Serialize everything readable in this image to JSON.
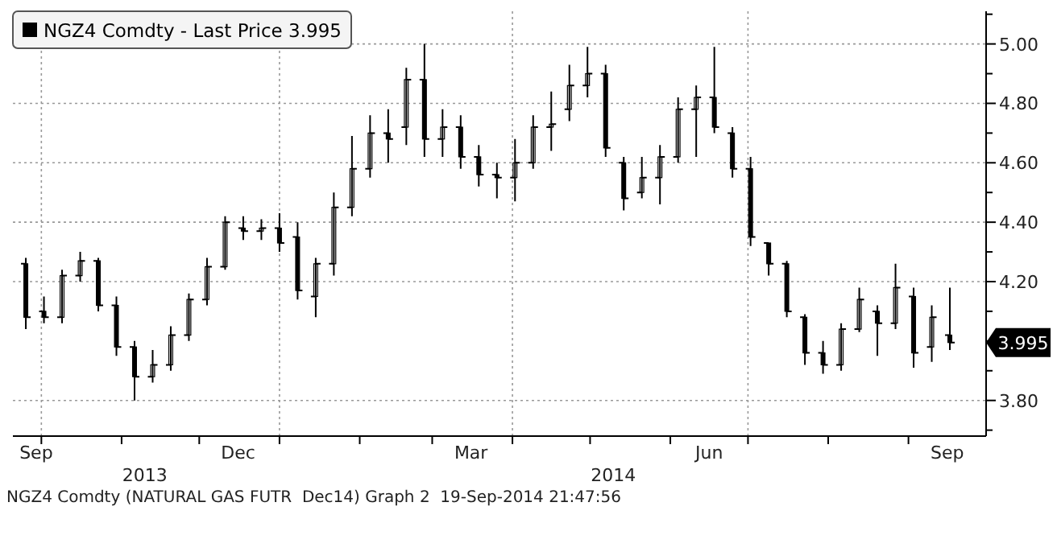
{
  "chart_data": {
    "type": "candlestick",
    "x": [
      "2013-09-25",
      "2013-10-02",
      "2013-10-09",
      "2013-10-16",
      "2013-10-23",
      "2013-10-30",
      "2013-11-06",
      "2013-11-13",
      "2013-11-20",
      "2013-11-27",
      "2013-12-04",
      "2013-12-11",
      "2013-12-18",
      "2013-12-25",
      "2014-01-01",
      "2014-01-08",
      "2014-01-15",
      "2014-01-22",
      "2014-01-29",
      "2014-02-05",
      "2014-02-12",
      "2014-02-19",
      "2014-02-26",
      "2014-03-05",
      "2014-03-12",
      "2014-03-19",
      "2014-03-26",
      "2014-04-02",
      "2014-04-09",
      "2014-04-16",
      "2014-04-23",
      "2014-04-30",
      "2014-05-07",
      "2014-05-14",
      "2014-05-21",
      "2014-05-28",
      "2014-06-04",
      "2014-06-11",
      "2014-06-18",
      "2014-06-25",
      "2014-07-02",
      "2014-07-09",
      "2014-07-16",
      "2014-07-23",
      "2014-07-30",
      "2014-08-06",
      "2014-08-13",
      "2014-08-20",
      "2014-08-27",
      "2014-09-03",
      "2014-09-10",
      "2014-09-17"
    ],
    "series": [
      {
        "name": "NGZ4 Comdty - Last Price 3.995",
        "color": "#000000",
        "ohlc": [
          [
            4.26,
            4.28,
            4.04,
            4.08
          ],
          [
            4.1,
            4.15,
            4.06,
            4.08
          ],
          [
            4.08,
            4.24,
            4.06,
            4.22
          ],
          [
            4.22,
            4.3,
            4.2,
            4.27
          ],
          [
            4.27,
            4.28,
            4.1,
            4.12
          ],
          [
            4.12,
            4.15,
            3.95,
            3.98
          ],
          [
            3.98,
            4.0,
            3.8,
            3.88
          ],
          [
            3.88,
            3.97,
            3.86,
            3.92
          ],
          [
            3.92,
            4.05,
            3.9,
            4.02
          ],
          [
            4.02,
            4.16,
            4.0,
            4.14
          ],
          [
            4.14,
            4.28,
            4.12,
            4.25
          ],
          [
            4.25,
            4.42,
            4.24,
            4.4
          ],
          [
            4.38,
            4.42,
            4.34,
            4.37
          ],
          [
            4.37,
            4.41,
            4.34,
            4.38
          ],
          [
            4.38,
            4.43,
            4.3,
            4.33
          ],
          [
            4.35,
            4.4,
            4.14,
            4.17
          ],
          [
            4.15,
            4.28,
            4.08,
            4.26
          ],
          [
            4.26,
            4.5,
            4.22,
            4.45
          ],
          [
            4.45,
            4.69,
            4.42,
            4.58
          ],
          [
            4.58,
            4.76,
            4.55,
            4.7
          ],
          [
            4.7,
            4.78,
            4.6,
            4.68
          ],
          [
            4.72,
            4.92,
            4.66,
            4.88
          ],
          [
            4.88,
            5.0,
            4.62,
            4.68
          ],
          [
            4.68,
            4.78,
            4.62,
            4.72
          ],
          [
            4.72,
            4.76,
            4.58,
            4.62
          ],
          [
            4.62,
            4.66,
            4.52,
            4.56
          ],
          [
            4.56,
            4.6,
            4.48,
            4.55
          ],
          [
            4.55,
            4.68,
            4.47,
            4.6
          ],
          [
            4.6,
            4.76,
            4.58,
            4.72
          ],
          [
            4.72,
            4.84,
            4.64,
            4.73
          ],
          [
            4.78,
            4.93,
            4.74,
            4.86
          ],
          [
            4.86,
            4.99,
            4.82,
            4.9
          ],
          [
            4.9,
            4.93,
            4.62,
            4.65
          ],
          [
            4.6,
            4.62,
            4.44,
            4.48
          ],
          [
            4.5,
            4.62,
            4.48,
            4.55
          ],
          [
            4.55,
            4.66,
            4.46,
            4.62
          ],
          [
            4.62,
            4.82,
            4.6,
            4.78
          ],
          [
            4.78,
            4.86,
            4.62,
            4.82
          ],
          [
            4.82,
            4.99,
            4.7,
            4.72
          ],
          [
            4.7,
            4.72,
            4.55,
            4.58
          ],
          [
            4.58,
            4.62,
            4.32,
            4.35
          ],
          [
            4.33,
            4.33,
            4.22,
            4.26
          ],
          [
            4.26,
            4.27,
            4.08,
            4.1
          ],
          [
            4.08,
            4.09,
            3.92,
            3.96
          ],
          [
            3.96,
            4.0,
            3.89,
            3.92
          ],
          [
            3.92,
            4.06,
            3.9,
            4.04
          ],
          [
            4.04,
            4.18,
            4.03,
            4.14
          ],
          [
            4.1,
            4.12,
            3.95,
            4.06
          ],
          [
            4.06,
            4.26,
            4.04,
            4.18
          ],
          [
            4.15,
            4.18,
            3.91,
            3.96
          ],
          [
            3.98,
            4.12,
            3.93,
            4.08
          ],
          [
            4.02,
            4.18,
            3.97,
            3.995
          ]
        ]
      }
    ],
    "xlim": [
      "2013-09-20",
      "2014-10-01"
    ],
    "xticks": [
      {
        "value": "2013-10-01",
        "label": null
      },
      {
        "value": "2013-11-01",
        "label": null
      },
      {
        "value": "2013-12-01",
        "label": null
      },
      {
        "value": "2014-01-01",
        "label": null
      },
      {
        "value": "2014-02-01",
        "label": null
      },
      {
        "value": "2014-03-01",
        "label": null
      },
      {
        "value": "2014-04-01",
        "label": null
      },
      {
        "value": "2014-05-01",
        "label": null
      },
      {
        "value": "2014-06-01",
        "label": null
      },
      {
        "value": "2014-07-01",
        "label": null
      },
      {
        "value": "2014-08-01",
        "label": null
      },
      {
        "value": "2014-09-01",
        "label": null
      },
      {
        "value": "2013-09-29",
        "label": "Sep"
      },
      {
        "value": "2013-12-16",
        "label": "Dec"
      },
      {
        "value": "2014-03-16",
        "label": "Mar"
      },
      {
        "value": "2014-06-16",
        "label": "Jun"
      },
      {
        "value": "2014-09-16",
        "label": "Sep"
      }
    ],
    "x2lim": [
      "2013-09-20",
      "2014-10-01"
    ],
    "x2ticks": [
      {
        "value": "2013-11-10",
        "label": "2013"
      },
      {
        "value": "2014-05-10",
        "label": "2014"
      }
    ],
    "ylim": [
      3.68,
      5.11
    ],
    "yticks": [
      {
        "value": 3.7,
        "label": null
      },
      {
        "value": 3.8,
        "label": "3.80"
      },
      {
        "value": 3.9,
        "label": null
      },
      {
        "value": 4.0,
        "label": null
      },
      {
        "value": 4.1,
        "label": null
      },
      {
        "value": 4.2,
        "label": "4.20"
      },
      {
        "value": 4.3,
        "label": null
      },
      {
        "value": 4.4,
        "label": "4.40"
      },
      {
        "value": 4.5,
        "label": null
      },
      {
        "value": 4.6,
        "label": "4.60"
      },
      {
        "value": 4.7,
        "label": null
      },
      {
        "value": 4.8,
        "label": "4.80"
      },
      {
        "value": 4.9,
        "label": null
      },
      {
        "value": 5.0,
        "label": "5.00"
      },
      {
        "value": 5.1,
        "label": null
      }
    ],
    "grid": "y",
    "ref_lines": [
      {
        "axis": "x",
        "value": "2013-10-01",
        "color": "#999999",
        "line_style": "dotted"
      },
      {
        "axis": "x",
        "value": "2014-01-01",
        "color": "#999999",
        "line_style": "dotted"
      },
      {
        "axis": "x",
        "value": "2014-04-01",
        "color": "#999999",
        "line_style": "dotted"
      },
      {
        "axis": "x",
        "value": "2014-07-01",
        "color": "#999999",
        "line_style": "dotted"
      }
    ],
    "legend": "top left",
    "annotations": [
      "3.995",
      "NGZ4 Comdty (NATURAL GAS FUTR  Dec14) Graph 2  19-Sep-2014 21:47:56"
    ]
  }
}
